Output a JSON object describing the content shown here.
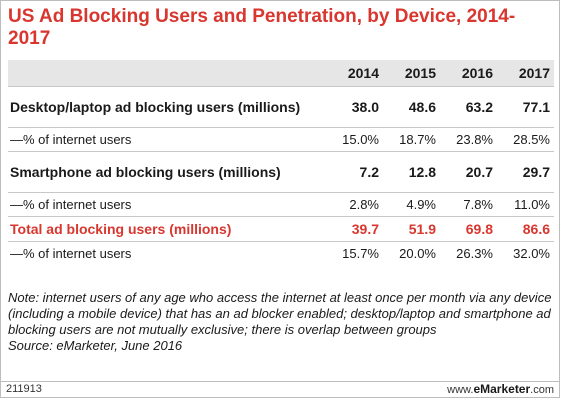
{
  "chart_data": {
    "type": "table",
    "title": "US Ad Blocking Users and Penetration, by Device, 2014-2017",
    "columns": [
      "2014",
      "2015",
      "2016",
      "2017"
    ],
    "rows": [
      {
        "label": "Desktop/laptop ad blocking users (millions)",
        "values": [
          "38.0",
          "48.6",
          "63.2",
          "77.1"
        ],
        "style": "main"
      },
      {
        "label": "—% of internet users",
        "values": [
          "15.0%",
          "18.7%",
          "23.8%",
          "28.5%"
        ],
        "style": "sub"
      },
      {
        "label": "Smartphone ad blocking users (millions)",
        "values": [
          "7.2",
          "12.8",
          "20.7",
          "29.7"
        ],
        "style": "main"
      },
      {
        "label": "—% of internet users",
        "values": [
          "2.8%",
          "4.9%",
          "7.8%",
          "11.0%"
        ],
        "style": "sub"
      },
      {
        "label": "Total ad blocking users (millions)",
        "values": [
          "39.7",
          "51.9",
          "69.8",
          "86.6"
        ],
        "style": "total"
      },
      {
        "label": "—% of internet users",
        "values": [
          "15.7%",
          "20.0%",
          "26.3%",
          "32.0%"
        ],
        "style": "sub"
      }
    ],
    "note": "Note: internet users of any age who access the internet at least once per month via any device (including a mobile device) that has an ad blocker enabled; desktop/laptop and smartphone ad blocking users are not mutually exclusive; there is overlap between groups",
    "source": "Source: eMarketer, June 2016"
  },
  "footer": {
    "code": "211913",
    "site_prefix": "www.",
    "site_brand": "eMarketer",
    "site_suffix": ".com"
  },
  "colors": {
    "accent": "#d8362e",
    "header_bg": "#e6e6e6"
  }
}
